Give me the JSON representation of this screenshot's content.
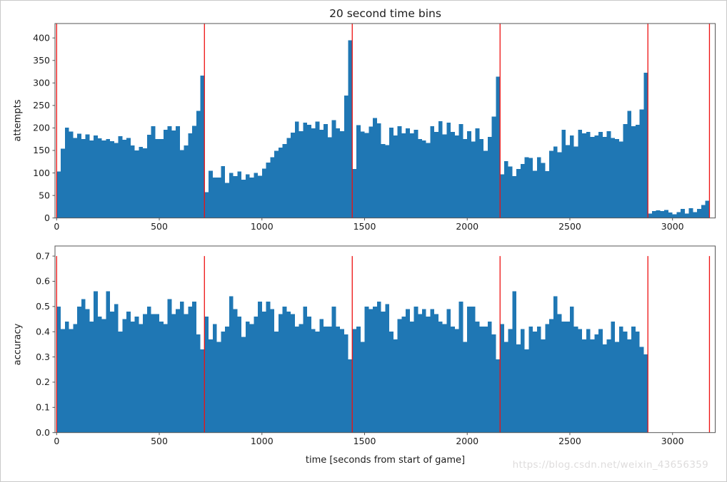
{
  "figure": {
    "title": "20 second time bins",
    "watermark": "https://blog.csdn.net/weixin_43656359",
    "colors": {
      "bar": "#1f77b4",
      "vline": "#ee1111",
      "spine": "#555555",
      "tick_text": "#1c1c1c",
      "watermark": "#dedcdc",
      "background": "#ffffff"
    }
  },
  "chart_data": [
    {
      "type": "bar",
      "name": "attempts-per-20s-histogram",
      "title": "20 second time bins",
      "xlabel": "",
      "ylabel": "attempts",
      "bin_seconds": 20,
      "x_start": 0,
      "xlim": [
        -8,
        3208
      ],
      "ylim": [
        0,
        432
      ],
      "xticks": [
        0,
        500,
        1000,
        1500,
        2000,
        2500,
        3000
      ],
      "yticks": [
        0,
        50,
        100,
        150,
        200,
        250,
        300,
        350,
        400
      ],
      "ytick_format": "int",
      "grid": false,
      "legend": null,
      "vlines": [
        0,
        720,
        1440,
        2160,
        2880,
        3180
      ],
      "vline_span": [
        0,
        432
      ],
      "values": [
        103,
        154,
        201,
        192,
        178,
        187,
        175,
        186,
        172,
        183,
        177,
        172,
        175,
        171,
        167,
        182,
        174,
        178,
        161,
        150,
        158,
        155,
        185,
        204,
        175,
        175,
        196,
        204,
        194,
        204,
        151,
        161,
        188,
        205,
        238,
        316,
        57,
        105,
        90,
        90,
        115,
        78,
        100,
        93,
        103,
        85,
        97,
        90,
        100,
        94,
        110,
        123,
        135,
        149,
        156,
        164,
        178,
        190,
        214,
        193,
        212,
        207,
        199,
        214,
        196,
        209,
        179,
        217,
        199,
        193,
        272,
        395,
        109,
        206,
        192,
        189,
        203,
        222,
        210,
        164,
        162,
        201,
        183,
        204,
        188,
        199,
        188,
        196,
        175,
        172,
        167,
        204,
        191,
        215,
        186,
        212,
        191,
        183,
        209,
        175,
        193,
        170,
        199,
        175,
        149,
        180,
        225,
        314,
        97,
        126,
        114,
        93,
        109,
        120,
        135,
        133,
        105,
        135,
        122,
        104,
        149,
        159,
        146,
        196,
        162,
        183,
        159,
        196,
        188,
        191,
        180,
        183,
        191,
        180,
        193,
        178,
        175,
        170,
        209,
        238,
        204,
        207,
        241,
        323,
        10,
        15,
        17,
        15,
        18,
        12,
        8,
        13,
        20,
        10,
        22,
        13,
        20,
        29,
        38
      ]
    },
    {
      "type": "bar",
      "name": "accuracy-per-20s-histogram",
      "title": "",
      "xlabel": "time [seconds from start of game]",
      "ylabel": "accuracy",
      "bin_seconds": 20,
      "x_start": 0,
      "xlim": [
        -8,
        3208
      ],
      "ylim": [
        0,
        0.74
      ],
      "xticks": [
        0,
        500,
        1000,
        1500,
        2000,
        2500,
        3000
      ],
      "yticks": [
        0.0,
        0.1,
        0.2,
        0.3,
        0.4,
        0.5,
        0.6,
        0.7
      ],
      "ytick_format": "1f",
      "grid": false,
      "legend": null,
      "vlines": [
        0,
        720,
        1440,
        2160,
        2880,
        3180
      ],
      "vline_span": [
        0,
        0.7
      ],
      "values": [
        0.5,
        0.41,
        0.44,
        0.41,
        0.43,
        0.5,
        0.53,
        0.49,
        0.44,
        0.56,
        0.46,
        0.45,
        0.56,
        0.48,
        0.51,
        0.4,
        0.45,
        0.48,
        0.44,
        0.46,
        0.43,
        0.47,
        0.5,
        0.47,
        0.47,
        0.44,
        0.43,
        0.53,
        0.47,
        0.49,
        0.52,
        0.47,
        0.5,
        0.52,
        0.39,
        0.33,
        0.46,
        0.37,
        0.43,
        0.36,
        0.4,
        0.42,
        0.54,
        0.49,
        0.46,
        0.38,
        0.44,
        0.43,
        0.46,
        0.52,
        0.48,
        0.52,
        0.49,
        0.4,
        0.47,
        0.5,
        0.48,
        0.47,
        0.42,
        0.43,
        0.5,
        0.46,
        0.41,
        0.4,
        0.45,
        0.42,
        0.42,
        0.5,
        0.42,
        0.41,
        0.39,
        0.29,
        0.41,
        0.42,
        0.36,
        0.5,
        0.49,
        0.5,
        0.52,
        0.48,
        0.51,
        0.4,
        0.37,
        0.45,
        0.46,
        0.49,
        0.44,
        0.5,
        0.47,
        0.49,
        0.46,
        0.49,
        0.47,
        0.44,
        0.43,
        0.49,
        0.42,
        0.41,
        0.52,
        0.36,
        0.5,
        0.5,
        0.44,
        0.42,
        0.42,
        0.44,
        0.39,
        0.29,
        0.43,
        0.36,
        0.41,
        0.56,
        0.35,
        0.41,
        0.33,
        0.42,
        0.4,
        0.42,
        0.37,
        0.43,
        0.45,
        0.54,
        0.47,
        0.44,
        0.44,
        0.5,
        0.42,
        0.41,
        0.37,
        0.41,
        0.37,
        0.39,
        0.41,
        0.35,
        0.37,
        0.44,
        0.36,
        0.42,
        0.4,
        0.37,
        0.42,
        0.4,
        0.34,
        0.31,
        0,
        0,
        0,
        0,
        0,
        0,
        0,
        0,
        0,
        0,
        0,
        0,
        0,
        0,
        0
      ]
    }
  ]
}
